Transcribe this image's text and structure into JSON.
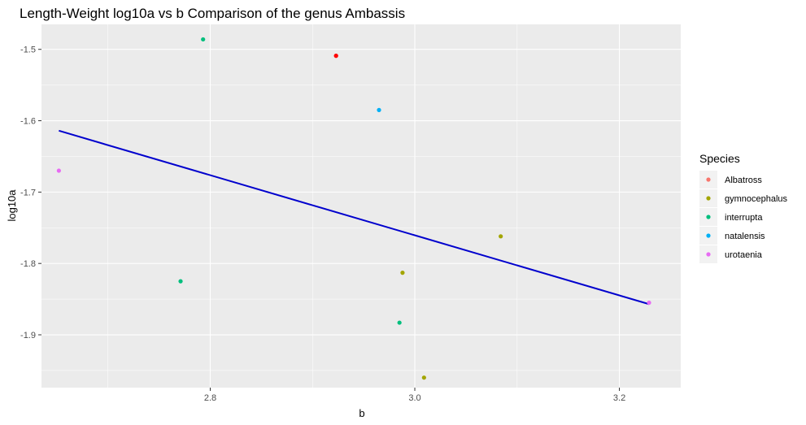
{
  "chart_data": {
    "type": "scatter",
    "title": "Length-Weight log10a vs b Comparison of the genus Ambassis",
    "xlabel": "b",
    "ylabel": "log10a",
    "xlim": [
      2.635,
      3.26
    ],
    "ylim": [
      -1.974,
      -1.465
    ],
    "x_ticks": [
      2.8,
      3.0,
      3.2
    ],
    "x_tick_labels": [
      "2.8",
      "3.0",
      "3.2"
    ],
    "y_ticks": [
      -1.5,
      -1.6,
      -1.7,
      -1.8,
      -1.9
    ],
    "y_tick_labels": [
      "-1.5",
      "-1.6",
      "-1.7",
      "-1.8",
      "-1.9"
    ],
    "grid": true,
    "legend": {
      "title": "Species",
      "position": "right"
    },
    "series": [
      {
        "name": "Albatross",
        "color": "#F8766D",
        "points": [
          [
            2.923,
            -1.509
          ]
        ]
      },
      {
        "name": "gymnocephalus",
        "color": "#A3A500",
        "points": [
          [
            3.084,
            -1.762
          ],
          [
            2.988,
            -1.813
          ],
          [
            3.009,
            -1.96
          ]
        ]
      },
      {
        "name": "interrupta",
        "color": "#00BF7D",
        "points": [
          [
            2.793,
            -1.486
          ],
          [
            2.771,
            -1.825
          ],
          [
            2.985,
            -1.883
          ]
        ]
      },
      {
        "name": "natalensis",
        "color": "#00B0F6",
        "points": [
          [
            2.965,
            -1.585
          ]
        ]
      },
      {
        "name": "urotaenia",
        "color": "#E76BF3",
        "points": [
          [
            2.652,
            -1.67
          ],
          [
            3.229,
            -1.855
          ]
        ]
      }
    ],
    "special_points": [
      {
        "x": 2.923,
        "y": -1.509,
        "color": "#FF0000"
      }
    ],
    "regression_line": {
      "color": "#0000CD",
      "x": [
        2.652,
        3.229
      ],
      "y": [
        -1.614,
        -1.857
      ]
    }
  }
}
